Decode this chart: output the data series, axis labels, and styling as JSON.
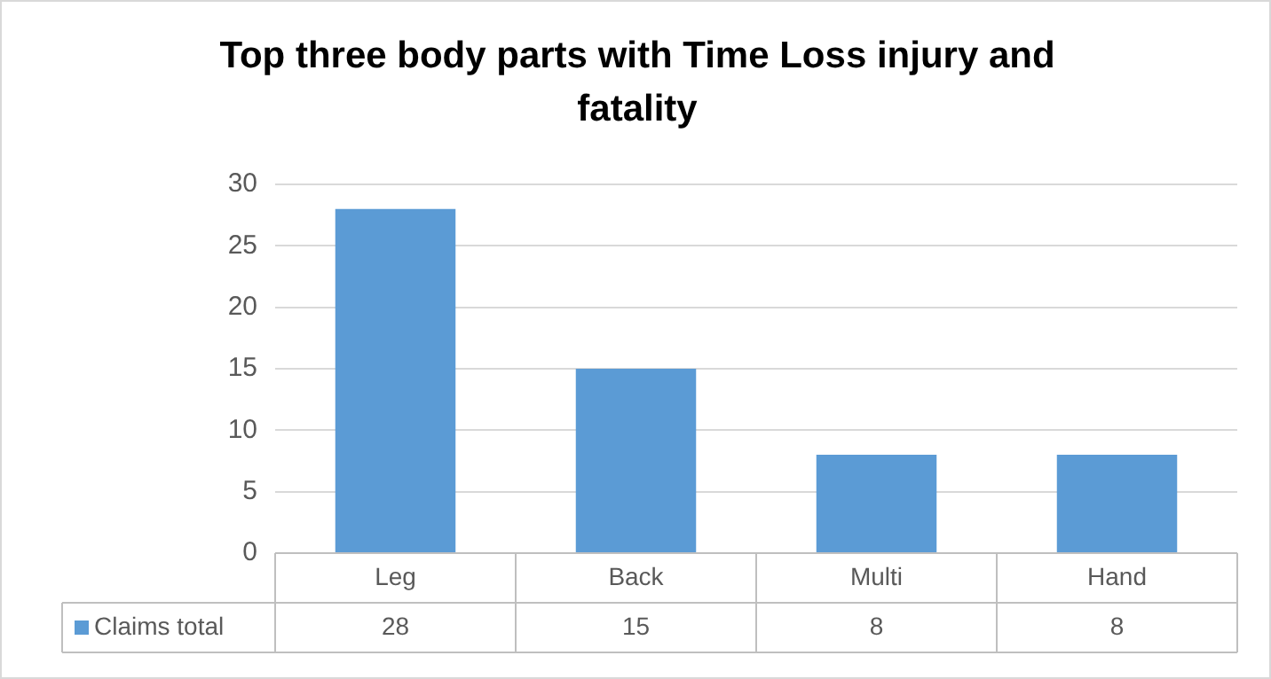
{
  "chart_data": {
    "type": "bar",
    "title": "Top three body parts with Time Loss injury and fatality",
    "categories": [
      "Leg",
      "Back",
      "Multi",
      "Hand"
    ],
    "series": [
      {
        "name": "Claims total",
        "color": "#5b9bd5",
        "values": [
          28,
          15,
          8,
          8
        ]
      }
    ],
    "ylim": [
      0,
      30
    ],
    "yticks": [
      0,
      5,
      10,
      15,
      20,
      25,
      30
    ],
    "grid": "y",
    "legend": "bottom",
    "data_labels": true
  }
}
